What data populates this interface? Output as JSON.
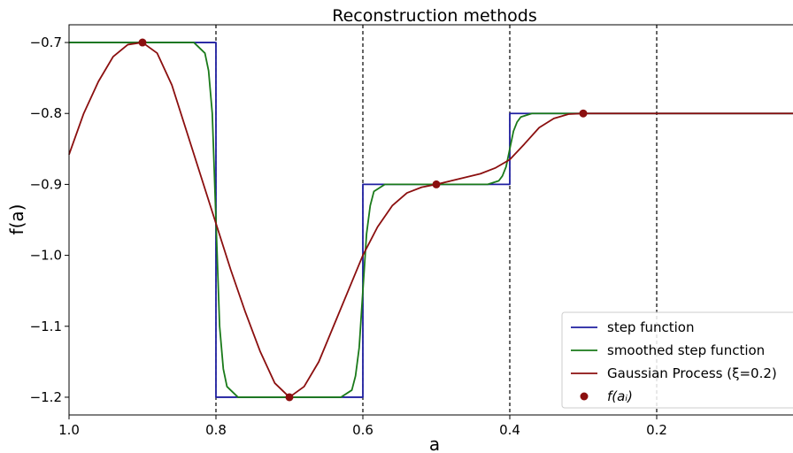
{
  "chart_data": {
    "type": "line",
    "title": "Reconstruction methods",
    "xlabel": "a",
    "ylabel": "f(a)",
    "xlim": [
      1.0,
      0.0
    ],
    "ylim": [
      -1.225,
      -0.675
    ],
    "x_reversed": true,
    "grid": false,
    "x_ticks": [
      1.0,
      0.8,
      0.6,
      0.4,
      0.2
    ],
    "x_tick_labels": [
      "1.0",
      "0.8",
      "0.6",
      "0.4",
      "0.2"
    ],
    "y_ticks": [
      -0.7,
      -0.8,
      -0.9,
      -1.0,
      -1.1,
      -1.2
    ],
    "y_tick_labels": [
      "−0.7",
      "−0.8",
      "−0.9",
      "−1.0",
      "−1.1",
      "−1.2"
    ],
    "vertical_lines": [
      0.8,
      0.6,
      0.4,
      0.2
    ],
    "legend_position": "lower-right",
    "series": [
      {
        "name": "step function",
        "color": "#1f1fa0",
        "style": "line",
        "x": [
          1.0,
          0.8,
          0.8,
          0.6,
          0.6,
          0.4,
          0.4,
          0.0
        ],
        "y": [
          -0.7,
          -0.7,
          -1.2,
          -1.2,
          -0.9,
          -0.9,
          -0.8,
          -0.8
        ]
      },
      {
        "name": "smoothed step function",
        "color": "#1a7a1a",
        "style": "line",
        "x": [
          1.0,
          0.83,
          0.815,
          0.81,
          0.805,
          0.8,
          0.795,
          0.79,
          0.785,
          0.77,
          0.63,
          0.615,
          0.61,
          0.605,
          0.6,
          0.595,
          0.59,
          0.585,
          0.57,
          0.43,
          0.415,
          0.41,
          0.405,
          0.4,
          0.395,
          0.39,
          0.385,
          0.37,
          0.0
        ],
        "y": [
          -0.7,
          -0.7,
          -0.715,
          -0.74,
          -0.8,
          -0.95,
          -1.1,
          -1.16,
          -1.185,
          -1.2,
          -1.2,
          -1.19,
          -1.17,
          -1.13,
          -1.05,
          -0.97,
          -0.93,
          -0.91,
          -0.9,
          -0.9,
          -0.895,
          -0.888,
          -0.875,
          -0.85,
          -0.825,
          -0.812,
          -0.805,
          -0.8,
          -0.8
        ]
      },
      {
        "name": "Gaussian Process (ξ=0.2)",
        "color": "#8b0f0f",
        "style": "line",
        "x": [
          1.0,
          0.98,
          0.96,
          0.94,
          0.92,
          0.9,
          0.88,
          0.86,
          0.84,
          0.82,
          0.8,
          0.78,
          0.76,
          0.74,
          0.72,
          0.7,
          0.68,
          0.66,
          0.64,
          0.62,
          0.6,
          0.58,
          0.56,
          0.54,
          0.52,
          0.5,
          0.48,
          0.46,
          0.44,
          0.42,
          0.4,
          0.38,
          0.36,
          0.34,
          0.32,
          0.3,
          0.25,
          0.2,
          0.1,
          0.0
        ],
        "y": [
          -0.858,
          -0.8,
          -0.755,
          -0.72,
          -0.703,
          -0.7,
          -0.715,
          -0.76,
          -0.825,
          -0.89,
          -0.955,
          -1.02,
          -1.08,
          -1.135,
          -1.18,
          -1.2,
          -1.185,
          -1.15,
          -1.1,
          -1.05,
          -1.0,
          -0.96,
          -0.93,
          -0.912,
          -0.904,
          -0.9,
          -0.895,
          -0.89,
          -0.885,
          -0.877,
          -0.865,
          -0.843,
          -0.82,
          -0.807,
          -0.801,
          -0.8,
          -0.8,
          -0.8,
          -0.8,
          -0.8
        ]
      },
      {
        "name": "f(aᵢ)",
        "color": "#8b0f0f",
        "style": "markers",
        "x": [
          0.9,
          0.7,
          0.5,
          0.3
        ],
        "y": [
          -0.7,
          -1.2,
          -0.9,
          -0.8
        ]
      }
    ]
  }
}
